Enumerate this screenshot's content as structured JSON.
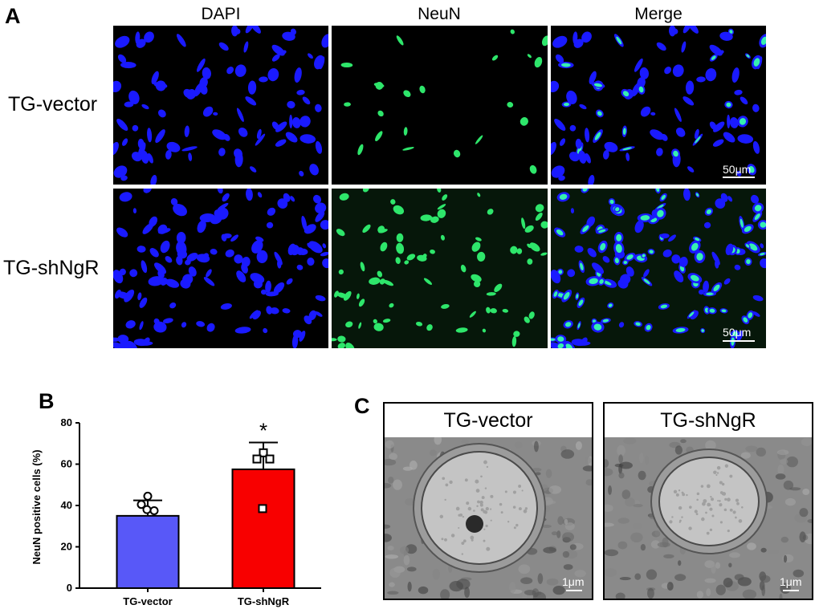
{
  "panel_a": {
    "letter": "A",
    "columns": [
      "DAPI",
      "NeuN",
      "Merge"
    ],
    "rows": [
      "TG-vector",
      "TG-shNgR"
    ],
    "scale_bar": "50μm",
    "colors": {
      "dapi": "#1a1aff",
      "neun": "#2ee66b",
      "background": "#000000"
    }
  },
  "panel_b": {
    "letter": "B",
    "significance": "*"
  },
  "panel_c": {
    "letter": "C",
    "titles": [
      "TG-vector",
      "TG-shNgR"
    ],
    "scale_bar": "1μm"
  },
  "chart_data": {
    "type": "bar",
    "categories": [
      "TG-vector",
      "TG-shNgR"
    ],
    "values": [
      35,
      57.5
    ],
    "error": [
      7.5,
      13
    ],
    "points": [
      [
        44.5,
        40.5,
        37.5,
        38
      ],
      [
        65.5,
        62.5,
        62.5,
        38.5
      ]
    ],
    "colors": [
      "#5858f8",
      "#f80000"
    ],
    "xlabel": "",
    "ylabel": "NeuN positive cells (%)",
    "ylim": [
      0,
      80
    ],
    "yticks": [
      0,
      20,
      40,
      60,
      80
    ],
    "annotations": [
      "*"
    ]
  }
}
